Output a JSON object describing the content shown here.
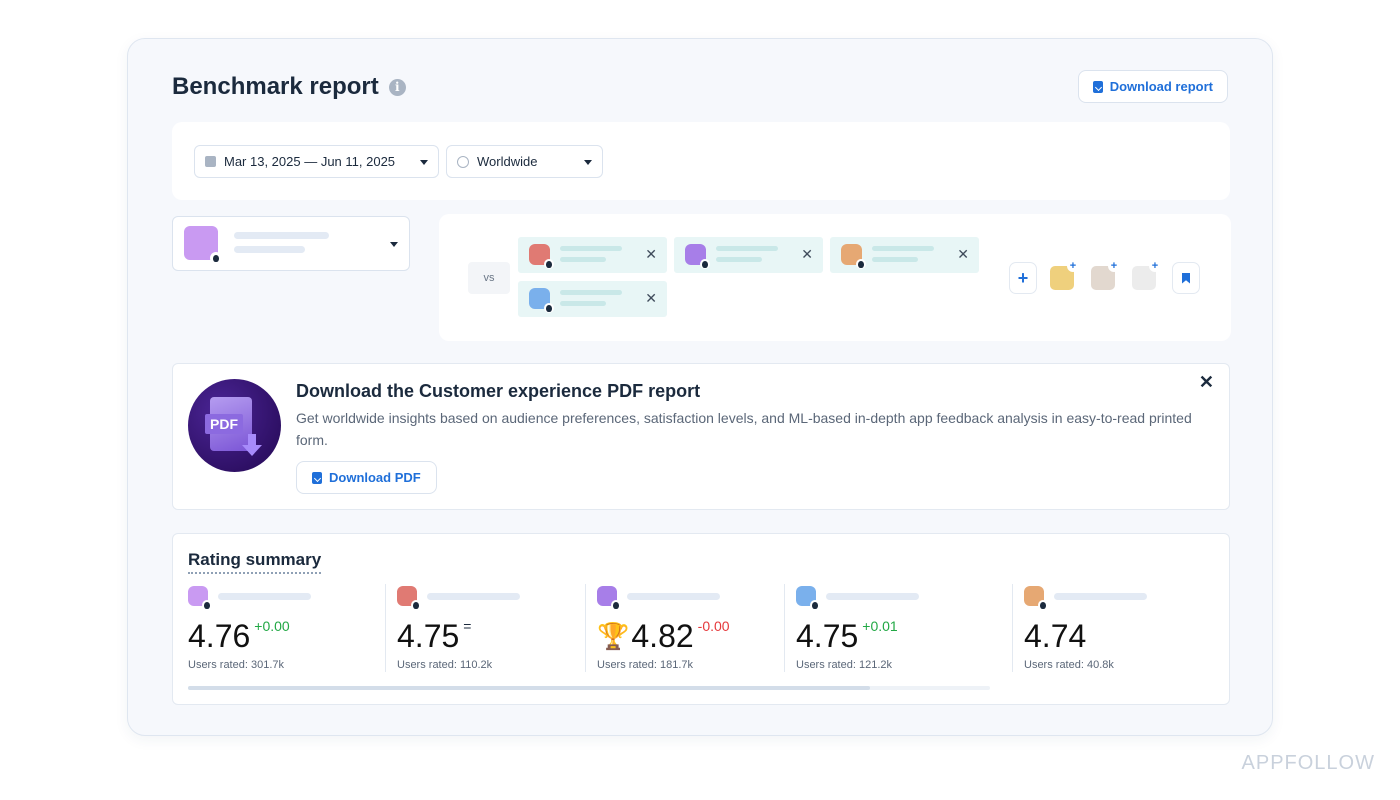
{
  "header": {
    "title": "Benchmark report",
    "download_label": "Download report"
  },
  "filters": {
    "date_range": "Mar 13, 2025 — Jun 11, 2025",
    "region": "Worldwide"
  },
  "compare": {
    "vs_label": "vs",
    "main_app_color": "#c99af2",
    "chips": [
      {
        "color": "#e07a73"
      },
      {
        "color": "#a77ee8"
      },
      {
        "color": "#e6a873"
      },
      {
        "color": "#7ab0ec"
      }
    ],
    "slots": [
      {
        "color": "#efd07d"
      },
      {
        "color": "#e2d8cf"
      },
      {
        "color": "#ececec"
      }
    ]
  },
  "promo": {
    "title": "Download the Customer experience PDF report",
    "description": "Get worldwide insights based on audience preferences, satisfaction levels, and ML-based in-depth app feedback analysis in easy-to-read printed form.",
    "pdf_badge": "PDF",
    "button_label": "Download PDF"
  },
  "rating_summary": {
    "title": "Rating summary",
    "scroll_fraction": 0.85,
    "items": [
      {
        "color": "#c99af2",
        "value": "4.76",
        "delta": "+0.00",
        "delta_color": "#22a845",
        "users": "Users rated: 301.7k",
        "trophy": false
      },
      {
        "color": "#e07a73",
        "value": "4.75",
        "delta": "=",
        "delta_color": "#1b2a3d",
        "users": "Users rated: 110.2k",
        "trophy": false
      },
      {
        "color": "#a77ee8",
        "value": "4.82",
        "delta": "-0.00",
        "delta_color": "#e5393c",
        "users": "Users rated: 181.7k",
        "trophy": true
      },
      {
        "color": "#7ab0ec",
        "value": "4.75",
        "delta": "+0.01",
        "delta_color": "#22a845",
        "users": "Users rated: 121.2k",
        "trophy": false
      },
      {
        "color": "#e6a873",
        "value": "4.74",
        "delta": "",
        "delta_color": "#22a845",
        "users": "Users rated: 40.8k",
        "trophy": false
      }
    ]
  },
  "brand": "APPFOLLOW"
}
